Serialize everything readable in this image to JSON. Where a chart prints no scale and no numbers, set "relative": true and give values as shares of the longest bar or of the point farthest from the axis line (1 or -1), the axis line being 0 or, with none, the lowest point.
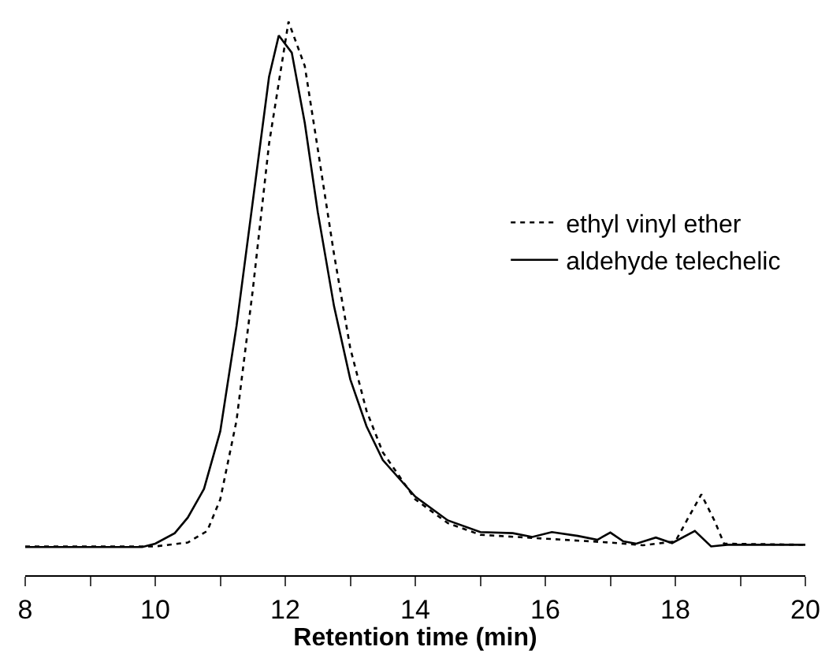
{
  "chart_data": {
    "type": "line",
    "xlabel": "Retention time (min)",
    "relative": true,
    "xlim": [
      8,
      20
    ],
    "xticks": [
      8,
      {
        "value": 9,
        "label": null
      },
      10,
      {
        "value": 11,
        "label": null
      },
      12,
      {
        "value": 13,
        "label": null
      },
      14,
      {
        "value": 15,
        "label": null
      },
      16,
      {
        "value": 17,
        "label": null
      },
      18,
      {
        "value": 19,
        "label": null
      },
      20
    ],
    "tick_labels": "x",
    "grid": false,
    "legend": "right",
    "marker": "none",
    "series": [
      {
        "name": "ethyl vinyl ether",
        "color": "#000000",
        "line_style": "dotted",
        "x": [
          8,
          10,
          10.5,
          10.8,
          11,
          11.25,
          11.5,
          11.75,
          12.05,
          12.3,
          12.5,
          12.75,
          13,
          13.25,
          13.5,
          14,
          14.5,
          15,
          16,
          17,
          17.5,
          18,
          18.2,
          18.4,
          18.6,
          18.75,
          20
        ],
        "values": [
          0.052,
          0.052,
          0.059,
          0.08,
          0.137,
          0.279,
          0.515,
          0.779,
          1.0,
          0.92,
          0.77,
          0.58,
          0.41,
          0.297,
          0.222,
          0.137,
          0.094,
          0.073,
          0.066,
          0.059,
          0.054,
          0.061,
          0.104,
          0.146,
          0.099,
          0.057,
          0.055
        ]
      },
      {
        "name": "aldehyde telechelic",
        "color": "#000000",
        "line_style": "solid",
        "x": [
          8,
          9.8,
          10,
          10.3,
          10.5,
          10.75,
          11,
          11.25,
          11.5,
          11.75,
          11.9,
          12.1,
          12.3,
          12.5,
          12.75,
          13,
          13.25,
          13.5,
          14,
          14.5,
          15,
          15.5,
          15.8,
          16.1,
          16.5,
          16.8,
          17,
          17.2,
          17.4,
          17.7,
          17.95,
          18.3,
          18.55,
          18.8,
          20
        ],
        "values": [
          0.051,
          0.051,
          0.057,
          0.076,
          0.104,
          0.156,
          0.26,
          0.45,
          0.675,
          0.9,
          0.975,
          0.944,
          0.817,
          0.656,
          0.486,
          0.354,
          0.269,
          0.208,
          0.142,
          0.099,
          0.078,
          0.076,
          0.069,
          0.078,
          0.071,
          0.064,
          0.077,
          0.061,
          0.057,
          0.068,
          0.058,
          0.08,
          0.052,
          0.055,
          0.055
        ]
      }
    ]
  }
}
